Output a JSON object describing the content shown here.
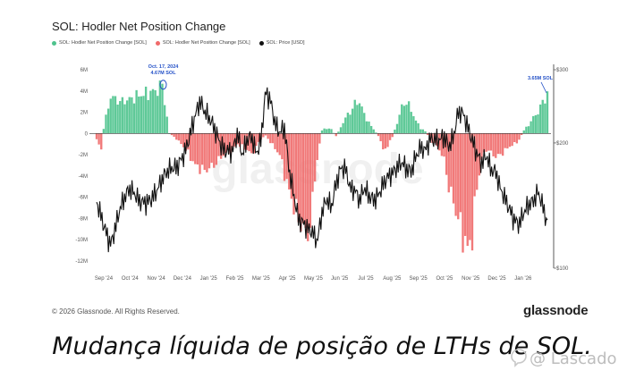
{
  "title": "SOL: Hodler Net Position Change",
  "legend": [
    {
      "label": "SOL: Hodler Net Position Change [SOL]",
      "color": "#4ec38d"
    },
    {
      "label": "SOL: Hodler Net Position Change [SOL]",
      "color": "#f06a6a"
    },
    {
      "label": "SOL: Price [USD]",
      "color": "#111111"
    }
  ],
  "footer": {
    "copyright": "© 2026 Glassnode. All Rights Reserved.",
    "brand": "glassnode",
    "watermark_chart": "glassnode"
  },
  "caption": "Mudança líquida de posição de LTHs de SOL.",
  "overlay_watermark": "@ Lascado",
  "colors": {
    "positive": "#4ec38d",
    "negative": "#f06a6a",
    "price": "#111111"
  },
  "chart_data": {
    "type": "bar",
    "title": "SOL: Hodler Net Position Change",
    "x_ticks": [
      "Sep '24",
      "Oct '24",
      "Nov '24",
      "Dec '24",
      "Jan '25",
      "Feb '25",
      "Mar '25",
      "Apr '25",
      "May '25",
      "Jun '25",
      "Jul '25",
      "Aug '25",
      "Sep '25",
      "Oct '25",
      "Nov '25",
      "Dec '25",
      "Jan '26"
    ],
    "y_left_ticks": [
      "6M",
      "4M",
      "2M",
      "0",
      "-2M",
      "-4M",
      "-6M",
      "-8M",
      "-10M",
      "-12M"
    ],
    "y_left_range": [
      -12000000,
      6000000
    ],
    "y_right_ticks": [
      "$300",
      "$200",
      "$100"
    ],
    "y_right_range": [
      100,
      300
    ],
    "y_right_scale": "log",
    "grid": false,
    "legend_position": "top-left",
    "annotations": [
      {
        "text": [
          "Oct. 17, 2024",
          "4.67M SOL"
        ],
        "x": "2024-10-17",
        "y": 4670000
      },
      {
        "text": [
          "3.65M SOL"
        ],
        "x": "2026-01-28",
        "y": 3650000
      }
    ],
    "series": [
      {
        "name": "SOL: Hodler Net Position Change [SOL]",
        "unit": "millions SOL",
        "keypoints": [
          [
            0,
            -0.5
          ],
          [
            2,
            -1.5
          ],
          [
            3,
            0.5
          ],
          [
            6,
            3.5
          ],
          [
            10,
            3.0
          ],
          [
            14,
            3.2
          ],
          [
            18,
            3.6
          ],
          [
            22,
            3.8
          ],
          [
            26,
            4.1
          ],
          [
            28,
            4.67
          ],
          [
            29,
            3.0
          ],
          [
            31,
            0
          ],
          [
            34,
            -0.5
          ],
          [
            38,
            -1.5
          ],
          [
            42,
            -3.0
          ],
          [
            46,
            -3.5
          ],
          [
            50,
            -3.0
          ],
          [
            54,
            -2.0
          ],
          [
            58,
            -1.5
          ],
          [
            60,
            -1.0
          ],
          [
            64,
            -1.5
          ],
          [
            66,
            -2.0
          ],
          [
            70,
            -0.5
          ],
          [
            72,
            -0.2
          ],
          [
            74,
            -0.8
          ],
          [
            78,
            -2.0
          ],
          [
            82,
            -5.5
          ],
          [
            86,
            -8.0
          ],
          [
            89,
            -9.5
          ],
          [
            91,
            -8.8
          ],
          [
            93,
            -4.0
          ],
          [
            95,
            -1.0
          ],
          [
            96,
            0.3
          ],
          [
            98,
            0.5
          ],
          [
            100,
            0.4
          ],
          [
            102,
            -0.3
          ],
          [
            104,
            0.6
          ],
          [
            106,
            1.5
          ],
          [
            108,
            2.0
          ],
          [
            110,
            2.8
          ],
          [
            112,
            3.0
          ],
          [
            114,
            1.8
          ],
          [
            116,
            1.0
          ],
          [
            118,
            0.4
          ],
          [
            120,
            -0.2
          ],
          [
            122,
            -1.5
          ],
          [
            124,
            -1.2
          ],
          [
            126,
            -0.3
          ],
          [
            128,
            1.0
          ],
          [
            130,
            2.5
          ],
          [
            132,
            3.0
          ],
          [
            134,
            2.2
          ],
          [
            136,
            1.2
          ],
          [
            138,
            0.5
          ],
          [
            140,
            0.2
          ],
          [
            142,
            -0.5
          ],
          [
            144,
            -1.0
          ],
          [
            146,
            -1.5
          ],
          [
            148,
            -2.5
          ],
          [
            150,
            -5.0
          ],
          [
            152,
            -6.5
          ],
          [
            154,
            -8.0
          ],
          [
            156,
            -9.5
          ],
          [
            158,
            -11.0
          ],
          [
            160,
            -9.5
          ],
          [
            162,
            -5.0
          ],
          [
            164,
            -2.5
          ],
          [
            166,
            -1.5
          ],
          [
            168,
            -1.8
          ],
          [
            170,
            -2.2
          ],
          [
            172,
            -2.0
          ],
          [
            174,
            -1.6
          ],
          [
            176,
            -1.2
          ],
          [
            178,
            -1.0
          ],
          [
            180,
            -0.6
          ],
          [
            182,
            0.3
          ],
          [
            184,
            0.8
          ],
          [
            186,
            1.5
          ],
          [
            188,
            2.0
          ],
          [
            190,
            3.0
          ],
          [
            192,
            3.65
          ]
        ]
      },
      {
        "name": "SOL: Price [USD]",
        "unit": "USD",
        "keypoints": [
          [
            0,
            140
          ],
          [
            3,
            128
          ],
          [
            6,
            118
          ],
          [
            10,
            140
          ],
          [
            14,
            150
          ],
          [
            18,
            145
          ],
          [
            22,
            150
          ],
          [
            26,
            155
          ],
          [
            30,
            165
          ],
          [
            34,
            175
          ],
          [
            38,
            200
          ],
          [
            41,
            225
          ],
          [
            44,
            245
          ],
          [
            46,
            230
          ],
          [
            50,
            220
          ],
          [
            54,
            200
          ],
          [
            58,
            190
          ],
          [
            60,
            205
          ],
          [
            62,
            180
          ],
          [
            64,
            200
          ],
          [
            66,
            210
          ],
          [
            68,
            195
          ],
          [
            70,
            210
          ],
          [
            72,
            270
          ],
          [
            74,
            250
          ],
          [
            76,
            215
          ],
          [
            78,
            205
          ],
          [
            80,
            215
          ],
          [
            82,
            175
          ],
          [
            84,
            155
          ],
          [
            86,
            135
          ],
          [
            88,
            130
          ],
          [
            90,
            122
          ],
          [
            92,
            118
          ],
          [
            94,
            112
          ],
          [
            96,
            135
          ],
          [
            98,
            150
          ],
          [
            100,
            145
          ],
          [
            102,
            165
          ],
          [
            104,
            175
          ],
          [
            106,
            170
          ],
          [
            108,
            150
          ],
          [
            110,
            150
          ],
          [
            112,
            145
          ],
          [
            114,
            160
          ],
          [
            116,
            155
          ],
          [
            118,
            150
          ],
          [
            120,
            150
          ],
          [
            122,
            155
          ],
          [
            124,
            160
          ],
          [
            126,
            165
          ],
          [
            128,
            175
          ],
          [
            130,
            185
          ],
          [
            132,
            180
          ],
          [
            134,
            175
          ],
          [
            136,
            185
          ],
          [
            138,
            190
          ],
          [
            140,
            185
          ],
          [
            142,
            200
          ],
          [
            144,
            205
          ],
          [
            146,
            210
          ],
          [
            148,
            215
          ],
          [
            150,
            200
          ],
          [
            152,
            205
          ],
          [
            154,
            230
          ],
          [
            156,
            228
          ],
          [
            158,
            215
          ],
          [
            160,
            205
          ],
          [
            162,
            195
          ],
          [
            164,
            185
          ],
          [
            166,
            190
          ],
          [
            168,
            170
          ],
          [
            170,
            165
          ],
          [
            172,
            150
          ],
          [
            174,
            145
          ],
          [
            176,
            140
          ],
          [
            178,
            135
          ],
          [
            180,
            132
          ],
          [
            182,
            138
          ],
          [
            184,
            140
          ],
          [
            186,
            140
          ],
          [
            188,
            148
          ],
          [
            190,
            140
          ],
          [
            192,
            130
          ]
        ]
      }
    ]
  }
}
